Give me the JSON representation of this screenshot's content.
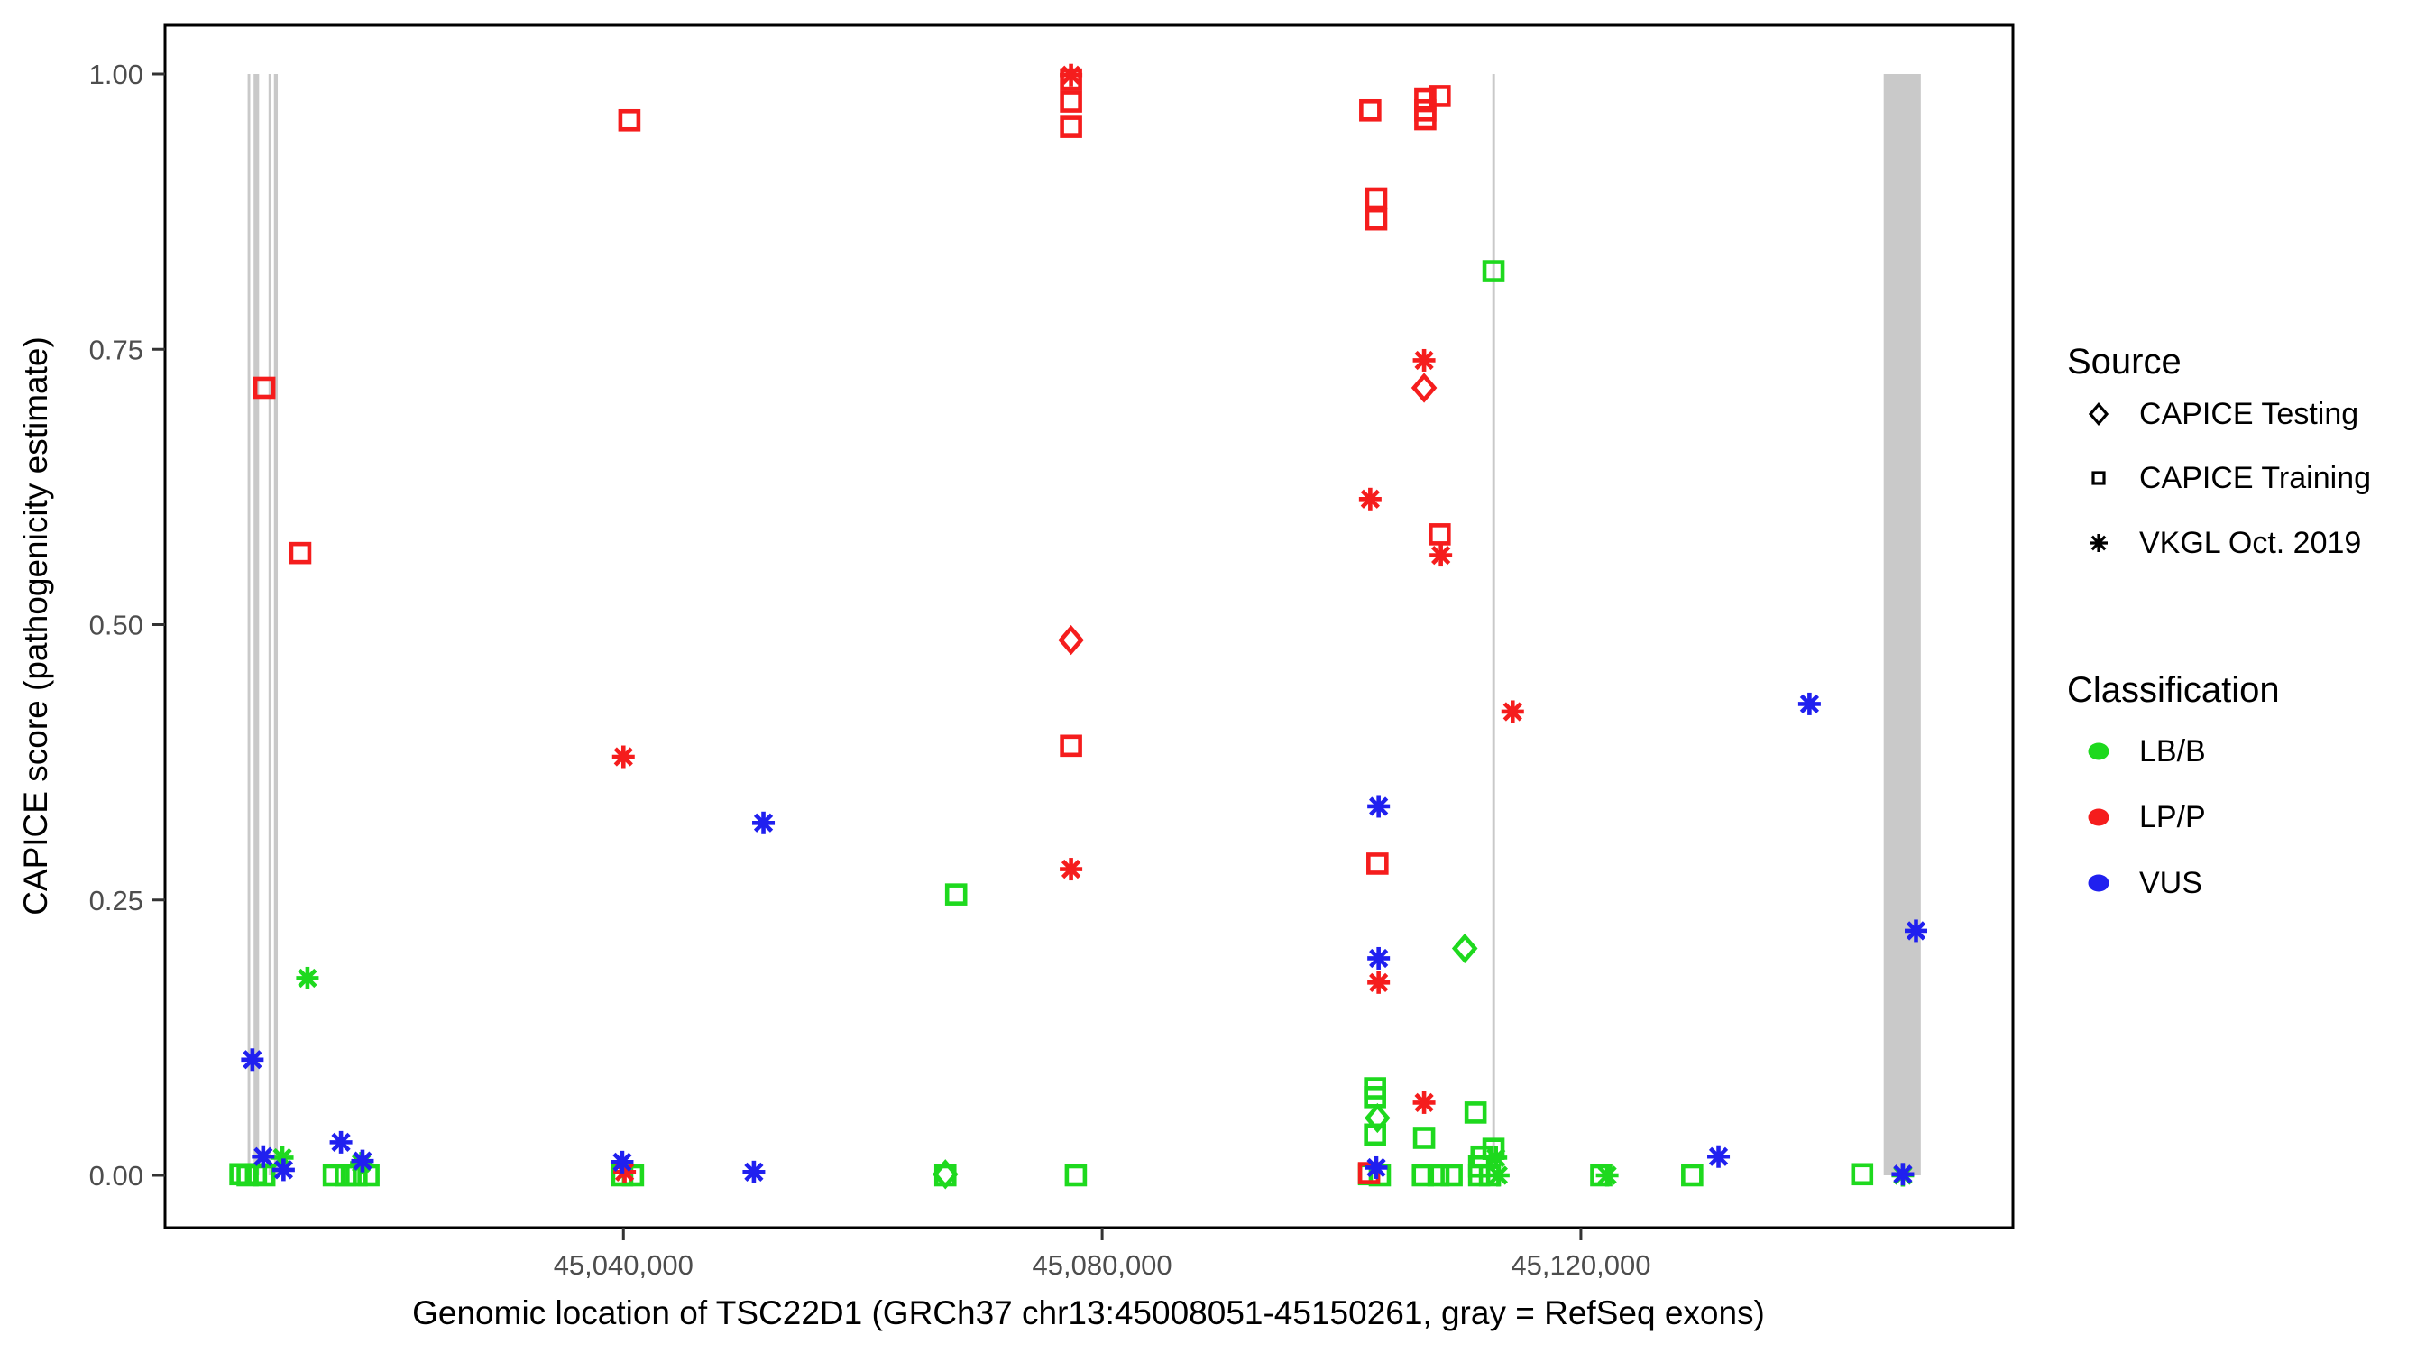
{
  "figure": {
    "background": "#FFFFFF",
    "panel_border_color": "#000000"
  },
  "colors": {
    "lbb": "#1ED91E",
    "lpp": "#F51D1D",
    "vus": "#2020EF",
    "exon_gray": "#C9C9C9",
    "tick_label_gray": "#4D4D4D",
    "tick_mark": "#333333",
    "legend_marker_black": "#000000"
  },
  "chart_data": {
    "type": "scatter",
    "title": "",
    "xlabel": "Genomic location of TSC22D1 (GRCh37 chr13:45008051-45150261, gray = RefSeq exons)",
    "ylabel": "CAPICE score (pathogenicity estimate)",
    "x_axis": {
      "min": 45001700,
      "max": 45156100,
      "grid": false,
      "ticks": [
        {
          "value": 45040000,
          "label": "45,040,000"
        },
        {
          "value": 45080000,
          "label": "45,080,000"
        },
        {
          "value": 45120000,
          "label": "45,120,000"
        }
      ]
    },
    "y_axis": {
      "min": 0.0,
      "max": 1.0,
      "grid": false,
      "ticks": [
        {
          "value": 1.0,
          "label": "1.00"
        },
        {
          "value": 0.75,
          "label": "0.75"
        },
        {
          "value": 0.5,
          "label": "0.50"
        },
        {
          "value": 0.25,
          "label": "0.25"
        },
        {
          "value": 0.0,
          "label": "0.00"
        }
      ]
    },
    "refseq_exons": [
      {
        "start": 45008600,
        "end": 45008820
      },
      {
        "start": 45009100,
        "end": 45009560
      },
      {
        "start": 45010350,
        "end": 45010560
      },
      {
        "start": 45010800,
        "end": 45011120
      },
      {
        "start": 45112600,
        "end": 45112820
      },
      {
        "start": 45145300,
        "end": 45148400
      }
    ],
    "series": [
      {
        "name": "LB/B - CAPICE Training",
        "classification": "LB/B",
        "source": "CAPICE Training",
        "marker": "square",
        "color_key": "lbb",
        "points": [
          [
            45067800,
            0.255
          ],
          [
            45112700,
            0.821
          ],
          [
            45102800,
            0.079
          ],
          [
            45102800,
            0.071
          ],
          [
            45102800,
            0.037
          ],
          [
            45106900,
            0.034
          ],
          [
            45111200,
            0.057
          ],
          [
            45112700,
            0.024
          ],
          [
            45111700,
            0.017
          ],
          [
            45111500,
            0.008
          ],
          [
            45111500,
            0.0
          ],
          [
            45112400,
            0.0
          ],
          [
            45106800,
            0.0
          ],
          [
            45108100,
            0.0
          ],
          [
            45109200,
            0.0
          ],
          [
            45121700,
            0.0
          ],
          [
            45129300,
            0.0
          ],
          [
            45143500,
            0.001
          ],
          [
            45102300,
            0.001
          ],
          [
            45103200,
            0.0
          ],
          [
            45008000,
            0.001
          ],
          [
            45008600,
            0.0
          ],
          [
            45009300,
            0.001
          ],
          [
            45010000,
            0.0
          ],
          [
            45015800,
            0.0
          ],
          [
            45016800,
            0.0
          ],
          [
            45017700,
            0.0
          ],
          [
            45018700,
            0.0
          ],
          [
            45039900,
            0.0
          ],
          [
            45040800,
            0.0
          ],
          [
            45066900,
            0.0
          ],
          [
            45077800,
            0.0
          ]
        ]
      },
      {
        "name": "LB/B - CAPICE Testing",
        "classification": "LB/B",
        "source": "CAPICE Testing",
        "marker": "diamond",
        "color_key": "lbb",
        "points": [
          [
            45110300,
            0.206
          ],
          [
            45103000,
            0.052
          ],
          [
            45066900,
            0.001
          ]
        ]
      },
      {
        "name": "LB/B - VKGL Oct. 2019",
        "classification": "LB/B",
        "source": "VKGL Oct. 2019",
        "marker": "asterisk",
        "color_key": "lbb",
        "points": [
          [
            45013600,
            0.179
          ],
          [
            45011500,
            0.016
          ],
          [
            45018100,
            0.011
          ],
          [
            45112900,
            0.016
          ],
          [
            45113100,
            0.0
          ],
          [
            45122200,
            0.0
          ],
          [
            45146900,
            0.0
          ]
        ]
      },
      {
        "name": "LP/P - CAPICE Training",
        "classification": "LP/P",
        "source": "CAPICE Training",
        "marker": "square",
        "color_key": "lpp",
        "points": [
          [
            45010000,
            0.715
          ],
          [
            45013000,
            0.565
          ],
          [
            45040500,
            0.958
          ],
          [
            45077400,
            0.995
          ],
          [
            45077400,
            0.975
          ],
          [
            45077400,
            0.952
          ],
          [
            45077400,
            0.39
          ],
          [
            45102400,
            0.967
          ],
          [
            45107000,
            0.977
          ],
          [
            45107000,
            0.967
          ],
          [
            45107000,
            0.959
          ],
          [
            45108200,
            0.98
          ],
          [
            45102900,
            0.887
          ],
          [
            45102900,
            0.868
          ],
          [
            45108200,
            0.582
          ],
          [
            45103000,
            0.283
          ],
          [
            45102300,
            0.002
          ]
        ]
      },
      {
        "name": "LP/P - CAPICE Testing",
        "classification": "LP/P",
        "source": "CAPICE Testing",
        "marker": "diamond",
        "color_key": "lpp",
        "points": [
          [
            45077400,
            0.486
          ],
          [
            45106900,
            0.715
          ]
        ]
      },
      {
        "name": "LP/P - VKGL Oct. 2019",
        "classification": "LP/P",
        "source": "VKGL Oct. 2019",
        "marker": "asterisk",
        "color_key": "lpp",
        "points": [
          [
            45040000,
            0.38
          ],
          [
            45077400,
            0.999
          ],
          [
            45077400,
            0.278
          ],
          [
            45106900,
            0.74
          ],
          [
            45102400,
            0.614
          ],
          [
            45108300,
            0.563
          ],
          [
            45114300,
            0.421
          ],
          [
            45103100,
            0.175
          ],
          [
            45106900,
            0.066
          ],
          [
            45040100,
            0.003
          ]
        ]
      },
      {
        "name": "VUS - VKGL Oct. 2019",
        "classification": "VUS",
        "source": "VKGL Oct. 2019",
        "marker": "asterisk",
        "color_key": "vus",
        "points": [
          [
            45009000,
            0.105
          ],
          [
            45009900,
            0.017
          ],
          [
            45011600,
            0.005
          ],
          [
            45016400,
            0.03
          ],
          [
            45018200,
            0.013
          ],
          [
            45039900,
            0.012
          ],
          [
            45050900,
            0.003
          ],
          [
            45051700,
            0.32
          ],
          [
            45103100,
            0.335
          ],
          [
            45103100,
            0.197
          ],
          [
            45102900,
            0.007
          ],
          [
            45131500,
            0.017
          ],
          [
            45139100,
            0.428
          ],
          [
            45146900,
            0.001
          ],
          [
            45148000,
            0.222
          ]
        ]
      }
    ],
    "legend_position": "right"
  },
  "legend": {
    "source": {
      "title": "Source",
      "items": [
        {
          "label": "CAPICE Testing",
          "marker": "diamond"
        },
        {
          "label": "CAPICE Training",
          "marker": "square"
        },
        {
          "label": "VKGL Oct. 2019",
          "marker": "asterisk"
        }
      ]
    },
    "classification": {
      "title": "Classification",
      "items": [
        {
          "label": "LB/B",
          "color_key": "lbb"
        },
        {
          "label": "LP/P",
          "color_key": "lpp"
        },
        {
          "label": "VUS",
          "color_key": "vus"
        }
      ]
    }
  }
}
